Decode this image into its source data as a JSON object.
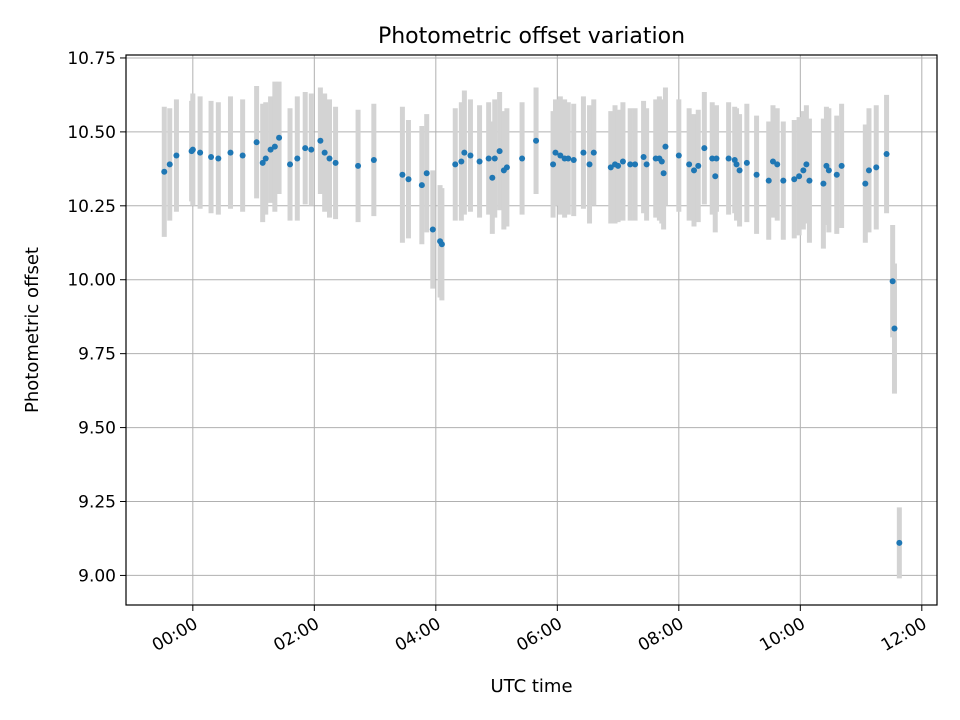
{
  "chart_data": {
    "type": "scatter",
    "title": "Photometric offset variation",
    "xlabel": "UTC time",
    "ylabel": "Photometric offset",
    "x_unit": "hours UTC",
    "xlim": [
      -1.1,
      12.25
    ],
    "ylim": [
      8.9,
      10.76
    ],
    "xticks": [
      0,
      2,
      4,
      6,
      8,
      10,
      12
    ],
    "xtick_labels": [
      "00:00",
      "02:00",
      "04:00",
      "06:00",
      "08:00",
      "10:00",
      "12:00"
    ],
    "yticks": [
      9.0,
      9.25,
      9.5,
      9.75,
      10.0,
      10.25,
      10.5,
      10.75
    ],
    "ytick_labels": [
      "9.00",
      "9.25",
      "9.50",
      "9.75",
      "10.00",
      "10.25",
      "10.50",
      "10.75"
    ],
    "grid": true,
    "point_color": "#1f77b4",
    "errorbar_color": "#d3d3d3",
    "series": [
      {
        "x": [
          -0.47,
          -0.38,
          -0.27,
          -0.02,
          0.0,
          0.12,
          0.3,
          0.42,
          0.62,
          0.82,
          1.05,
          1.15,
          1.2,
          1.28,
          1.35,
          1.42,
          1.6,
          1.72,
          1.85,
          1.95,
          2.1,
          2.17,
          2.25,
          2.35,
          2.72,
          2.98,
          3.45,
          3.55,
          3.77,
          3.85,
          3.95,
          4.07,
          4.1,
          4.32,
          4.42,
          4.47,
          4.57,
          4.72,
          4.87,
          4.93,
          4.97,
          5.05,
          5.12,
          5.17,
          5.42,
          5.65,
          5.93,
          5.97,
          6.05,
          6.12,
          6.18,
          6.27,
          6.43,
          6.53,
          6.6,
          6.88,
          6.95,
          7.0,
          7.08,
          7.2,
          7.28,
          7.42,
          7.47,
          7.62,
          7.68,
          7.72,
          7.75,
          7.78,
          8.0,
          8.17,
          8.25,
          8.32,
          8.42,
          8.55,
          8.6,
          8.62,
          8.82,
          8.92,
          8.95,
          9.0,
          9.12,
          9.28,
          9.48,
          9.55,
          9.62,
          9.72,
          9.9,
          9.98,
          10.05,
          10.1,
          10.15,
          10.38,
          10.43,
          10.47,
          10.6,
          10.68,
          11.07,
          11.13,
          11.25,
          11.42,
          11.52,
          11.55,
          11.63
        ],
        "y": [
          10.365,
          10.39,
          10.42,
          10.435,
          10.44,
          10.43,
          10.415,
          10.41,
          10.43,
          10.42,
          10.465,
          10.395,
          10.41,
          10.44,
          10.45,
          10.48,
          10.39,
          10.41,
          10.445,
          10.44,
          10.47,
          10.43,
          10.41,
          10.395,
          10.385,
          10.405,
          10.355,
          10.34,
          10.32,
          10.36,
          10.17,
          10.13,
          10.12,
          10.39,
          10.4,
          10.43,
          10.42,
          10.4,
          10.41,
          10.345,
          10.41,
          10.435,
          10.37,
          10.38,
          10.41,
          10.47,
          10.39,
          10.43,
          10.42,
          10.41,
          10.41,
          10.405,
          10.43,
          10.39,
          10.43,
          10.38,
          10.39,
          10.385,
          10.4,
          10.39,
          10.39,
          10.415,
          10.39,
          10.41,
          10.41,
          10.4,
          10.36,
          10.45,
          10.42,
          10.39,
          10.37,
          10.385,
          10.445,
          10.41,
          10.35,
          10.41,
          10.41,
          10.405,
          10.39,
          10.37,
          10.395,
          10.355,
          10.335,
          10.4,
          10.39,
          10.335,
          10.34,
          10.35,
          10.37,
          10.39,
          10.335,
          10.325,
          10.385,
          10.37,
          10.355,
          10.385,
          10.325,
          10.37,
          10.38,
          10.425,
          9.995,
          9.835,
          9.11
        ],
        "err": [
          0.22,
          0.19,
          0.19,
          0.17,
          0.19,
          0.19,
          0.19,
          0.19,
          0.19,
          0.19,
          0.19,
          0.2,
          0.19,
          0.18,
          0.22,
          0.19,
          0.19,
          0.21,
          0.19,
          0.19,
          0.18,
          0.2,
          0.2,
          0.19,
          0.19,
          0.19,
          0.23,
          0.2,
          0.2,
          0.2,
          0.2,
          0.19,
          0.19,
          0.19,
          0.2,
          0.21,
          0.19,
          0.19,
          0.19,
          0.19,
          0.2,
          0.2,
          0.2,
          0.2,
          0.19,
          0.18,
          0.18,
          0.18,
          0.2,
          0.2,
          0.19,
          0.19,
          0.19,
          0.2,
          0.18,
          0.19,
          0.2,
          0.19,
          0.2,
          0.19,
          0.19,
          0.19,
          0.19,
          0.2,
          0.21,
          0.21,
          0.19,
          0.2,
          0.19,
          0.19,
          0.19,
          0.19,
          0.19,
          0.19,
          0.19,
          0.18,
          0.19,
          0.18,
          0.19,
          0.19,
          0.2,
          0.2,
          0.2,
          0.19,
          0.19,
          0.2,
          0.2,
          0.2,
          0.2,
          0.2,
          0.21,
          0.22,
          0.2,
          0.21,
          0.2,
          0.21,
          0.2,
          0.21,
          0.21,
          0.2,
          0.19,
          0.22,
          0.12
        ]
      }
    ]
  }
}
